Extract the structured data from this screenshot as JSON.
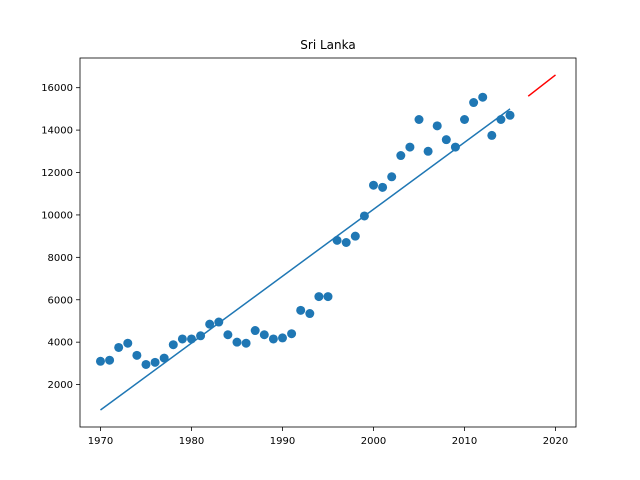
{
  "chart_data": {
    "type": "scatter",
    "title": "Sri Lanka",
    "xlabel": "",
    "ylabel": "",
    "xlim": [
      1967.75,
      2022.25
    ],
    "ylim": [
      0,
      17400
    ],
    "xticks": [
      1970,
      1980,
      1990,
      2000,
      2010,
      2020
    ],
    "yticks": [
      2000,
      4000,
      6000,
      8000,
      10000,
      12000,
      14000,
      16000
    ],
    "grid": false,
    "colors": {
      "points": "#1f77b4",
      "fit": "#1f77b4",
      "forecast": "#ff0000"
    },
    "points": [
      {
        "x": 1970,
        "y": 3100
      },
      {
        "x": 1971,
        "y": 3150
      },
      {
        "x": 1972,
        "y": 3750
      },
      {
        "x": 1973,
        "y": 3950
      },
      {
        "x": 1974,
        "y": 3380
      },
      {
        "x": 1975,
        "y": 2950
      },
      {
        "x": 1976,
        "y": 3050
      },
      {
        "x": 1977,
        "y": 3250
      },
      {
        "x": 1978,
        "y": 3880
      },
      {
        "x": 1979,
        "y": 4150
      },
      {
        "x": 1980,
        "y": 4150
      },
      {
        "x": 1981,
        "y": 4300
      },
      {
        "x": 1982,
        "y": 4850
      },
      {
        "x": 1983,
        "y": 4950
      },
      {
        "x": 1984,
        "y": 4350
      },
      {
        "x": 1985,
        "y": 4000
      },
      {
        "x": 1986,
        "y": 3950
      },
      {
        "x": 1987,
        "y": 4550
      },
      {
        "x": 1988,
        "y": 4350
      },
      {
        "x": 1989,
        "y": 4150
      },
      {
        "x": 1990,
        "y": 4200
      },
      {
        "x": 1991,
        "y": 4400
      },
      {
        "x": 1992,
        "y": 5500
      },
      {
        "x": 1993,
        "y": 5350
      },
      {
        "x": 1994,
        "y": 6150
      },
      {
        "x": 1995,
        "y": 6150
      },
      {
        "x": 1996,
        "y": 8800
      },
      {
        "x": 1997,
        "y": 8700
      },
      {
        "x": 1998,
        "y": 9000
      },
      {
        "x": 1999,
        "y": 9950
      },
      {
        "x": 2000,
        "y": 11400
      },
      {
        "x": 2001,
        "y": 11300
      },
      {
        "x": 2002,
        "y": 11800
      },
      {
        "x": 2003,
        "y": 12800
      },
      {
        "x": 2004,
        "y": 13200
      },
      {
        "x": 2005,
        "y": 14500
      },
      {
        "x": 2006,
        "y": 13000
      },
      {
        "x": 2007,
        "y": 14200
      },
      {
        "x": 2008,
        "y": 13550
      },
      {
        "x": 2009,
        "y": 13200
      },
      {
        "x": 2010,
        "y": 14500
      },
      {
        "x": 2011,
        "y": 15300
      },
      {
        "x": 2012,
        "y": 15550
      },
      {
        "x": 2013,
        "y": 13750
      },
      {
        "x": 2014,
        "y": 14500
      },
      {
        "x": 2015,
        "y": 14700
      }
    ],
    "fit_line": [
      {
        "x": 1970,
        "y": 800
      },
      {
        "x": 2015,
        "y": 15000
      }
    ],
    "forecast_line": [
      {
        "x": 2017,
        "y": 15600
      },
      {
        "x": 2020,
        "y": 16600
      }
    ]
  }
}
